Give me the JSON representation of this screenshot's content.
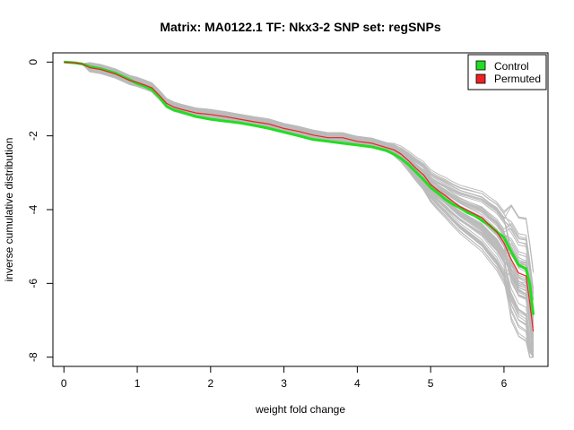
{
  "chart_data": {
    "type": "line",
    "title": "Matrix: MA0122.1 TF: Nkx3-2 SNP set: regSNPs",
    "xlabel": "weight fold change",
    "ylabel": "inverse cumulative distribution",
    "xlim": [
      -0.15,
      6.6
    ],
    "ylim": [
      -8.25,
      0.25
    ],
    "xticks": [
      0,
      1,
      2,
      3,
      4,
      5,
      6
    ],
    "yticks": [
      0,
      -2,
      -4,
      -6,
      -8
    ],
    "legend_position": "top-right",
    "colors": {
      "control": "#22dd22",
      "permuted": "#ee2222",
      "background": "#bbbbbb",
      "axis": "#000000"
    },
    "series": [
      {
        "name": "Control",
        "x": [
          0,
          0.15,
          0.25,
          0.35,
          0.5,
          0.7,
          0.9,
          1.0,
          1.1,
          1.2,
          1.3,
          1.4,
          1.5,
          1.6,
          1.8,
          2.0,
          2.2,
          2.4,
          2.6,
          2.8,
          3.0,
          3.2,
          3.4,
          3.6,
          3.8,
          4.0,
          4.2,
          4.4,
          4.5,
          4.6,
          4.7,
          4.8,
          4.9,
          5.0,
          5.1,
          5.2,
          5.3,
          5.4,
          5.5,
          5.6,
          5.7,
          5.8,
          5.9,
          6.0,
          6.1,
          6.2,
          6.3,
          6.35,
          6.4
        ],
        "y": [
          0,
          -0.02,
          -0.05,
          -0.12,
          -0.18,
          -0.3,
          -0.48,
          -0.58,
          -0.65,
          -0.75,
          -0.95,
          -1.2,
          -1.3,
          -1.35,
          -1.48,
          -1.55,
          -1.6,
          -1.65,
          -1.72,
          -1.8,
          -1.9,
          -2.0,
          -2.1,
          -2.15,
          -2.2,
          -2.25,
          -2.3,
          -2.4,
          -2.5,
          -2.62,
          -2.78,
          -2.98,
          -3.18,
          -3.4,
          -3.55,
          -3.72,
          -3.85,
          -3.95,
          -4.08,
          -4.15,
          -4.3,
          -4.42,
          -4.6,
          -4.75,
          -5.15,
          -5.5,
          -5.6,
          -6.0,
          -6.85
        ]
      },
      {
        "name": "Permuted",
        "x": [
          0,
          0.15,
          0.25,
          0.35,
          0.5,
          0.7,
          0.9,
          1.0,
          1.1,
          1.2,
          1.3,
          1.4,
          1.5,
          1.6,
          1.8,
          2.0,
          2.2,
          2.4,
          2.6,
          2.8,
          3.0,
          3.2,
          3.4,
          3.6,
          3.8,
          4.0,
          4.2,
          4.4,
          4.5,
          4.6,
          4.7,
          4.8,
          4.9,
          5.0,
          5.1,
          5.2,
          5.3,
          5.4,
          5.5,
          5.6,
          5.7,
          5.8,
          5.9,
          6.0,
          6.1,
          6.2,
          6.3,
          6.35,
          6.4
        ],
        "y": [
          0,
          -0.02,
          -0.05,
          -0.15,
          -0.2,
          -0.32,
          -0.5,
          -0.55,
          -0.62,
          -0.7,
          -0.9,
          -1.12,
          -1.22,
          -1.28,
          -1.38,
          -1.42,
          -1.48,
          -1.55,
          -1.62,
          -1.68,
          -1.8,
          -1.88,
          -1.98,
          -2.05,
          -2.05,
          -2.15,
          -2.2,
          -2.32,
          -2.38,
          -2.5,
          -2.68,
          -2.88,
          -3.05,
          -3.32,
          -3.48,
          -3.62,
          -3.78,
          -3.92,
          -4.02,
          -4.12,
          -4.22,
          -4.42,
          -4.6,
          -4.9,
          -5.35,
          -5.72,
          -5.8,
          -6.5,
          -7.3
        ]
      }
    ]
  }
}
